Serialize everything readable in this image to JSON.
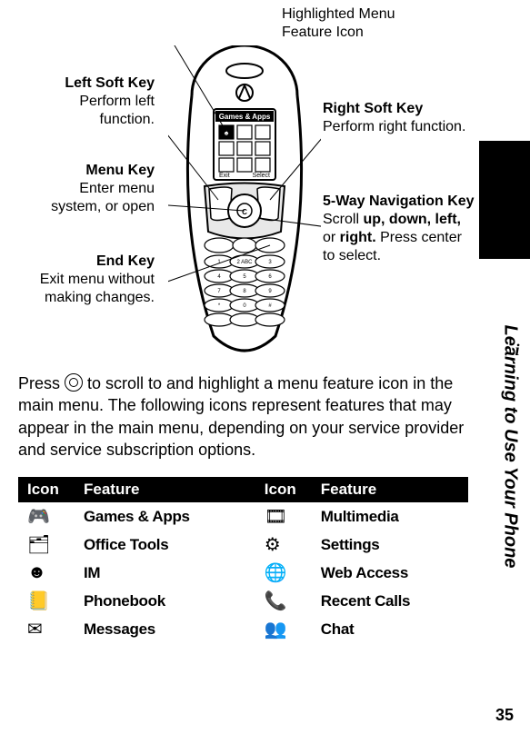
{
  "page_number": "35",
  "side_title": "Learning to Use Your Phone",
  "callouts": {
    "highlighted": {
      "title": "Highlighted Menu Feature Icon",
      "body": ""
    },
    "left_softkey": {
      "title": "Left Soft Key",
      "body": "Perform left function."
    },
    "right_softkey": {
      "title": "Right Soft Key",
      "body": "Perform right function."
    },
    "menu_key": {
      "title": "Menu Key",
      "body": "Enter menu system, or open"
    },
    "nav_key": {
      "title": "5-Way Navigation Key",
      "body": "Scroll up, down, left, or right. Press center to select."
    },
    "end_key": {
      "title": "End Key",
      "body": "Exit menu without making changes."
    }
  },
  "body_para": "Press  to scroll to and highlight a menu feature icon in the main menu. The following icons represent features that may appear in the main menu, depending on your service provider and service subscription options.",
  "nav_bold_words": "up, down, left, right.",
  "table": {
    "headers": [
      "Icon",
      "Feature",
      "Icon",
      "Feature"
    ],
    "rows": [
      [
        "🎮",
        "Games & Apps",
        "🎞",
        "Multimedia"
      ],
      [
        "🗂",
        "Office Tools",
        "⚙",
        "Settings"
      ],
      [
        "☻",
        "IM",
        "🌐",
        "Web Access"
      ],
      [
        "📒",
        "Phonebook",
        "📞",
        "Recent Calls"
      ],
      [
        "✉",
        "Messages",
        "👥",
        "Chat"
      ]
    ]
  },
  "phone_screen_title": "Games & Apps",
  "softkey_labels": {
    "left": "Exit",
    "right": "Select"
  }
}
